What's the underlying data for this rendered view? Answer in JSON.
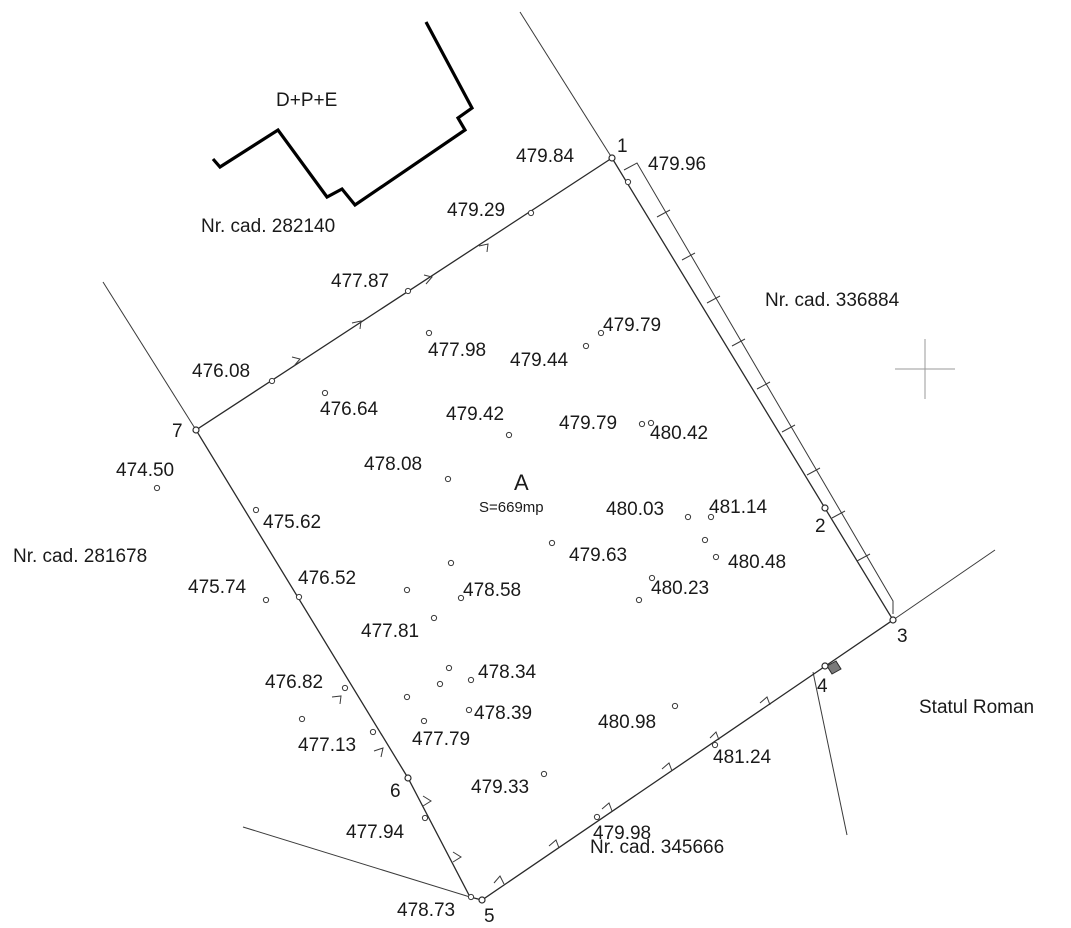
{
  "building": {
    "label": "D+P+E"
  },
  "parcel": {
    "name": "A",
    "area": "S=669mp"
  },
  "neighbors": {
    "north": "Nr. cad. 282140",
    "east": "Nr. cad. 336884",
    "west": "Nr. cad. 281678",
    "south": "Nr. cad. 345666",
    "southeast": "Statul Roman"
  },
  "vertices": [
    "1",
    "2",
    "3",
    "4",
    "5",
    "6",
    "7"
  ],
  "elevations": [
    "479.84",
    "479.96",
    "479.29",
    "477.87",
    "476.08",
    "477.98",
    "479.44",
    "479.79",
    "476.64",
    "479.42",
    "479.79",
    "480.42",
    "474.50",
    "478.08",
    "480.03",
    "481.14",
    "475.62",
    "479.63",
    "480.48",
    "475.74",
    "476.52",
    "478.58",
    "480.23",
    "477.81",
    "478.34",
    "476.82",
    "478.39",
    "480.98",
    "477.13",
    "477.79",
    "481.24",
    "479.33",
    "477.94",
    "479.98",
    "478.73"
  ]
}
